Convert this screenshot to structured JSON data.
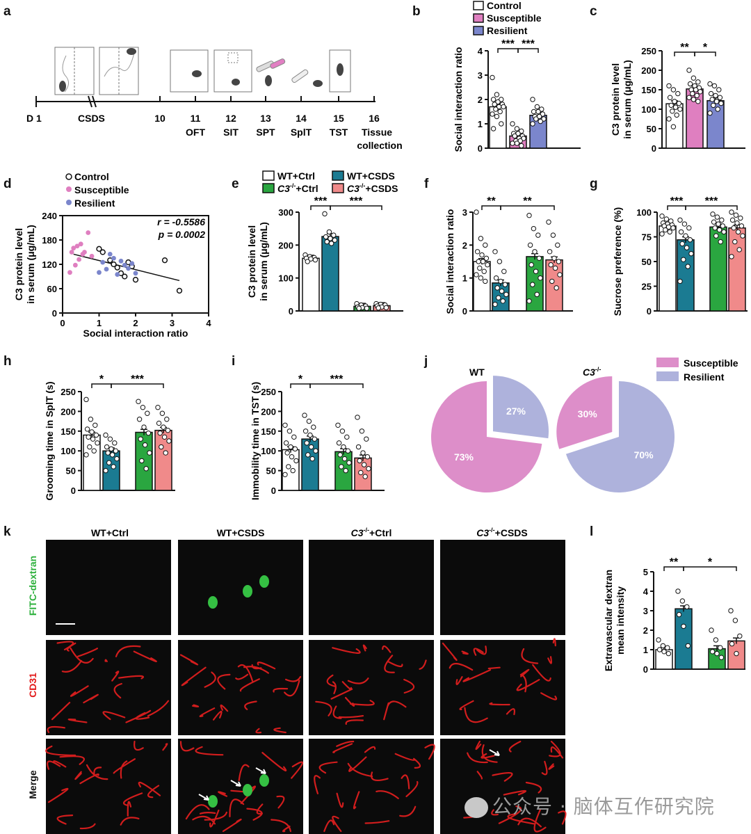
{
  "colors": {
    "control": "#ffffff",
    "susceptible": "#df7fc0",
    "resilient": "#7b86cc",
    "wt_ctrl": "#ffffff",
    "wt_csds": "#1b7b92",
    "c3_ctrl": "#2aa640",
    "c3_csds": "#f08a8a",
    "pie_susceptible": "#dd8ec9",
    "pie_resilient": "#aeb2dc",
    "fitc": "#35c043",
    "cd31": "#e81f1f"
  },
  "panel_letters": [
    "a",
    "b",
    "c",
    "d",
    "e",
    "f",
    "g",
    "h",
    "i",
    "j",
    "k",
    "l"
  ],
  "panel_a": {
    "day_start": "D 1",
    "csds_label": "CSDS",
    "days": [
      "10",
      "11",
      "12",
      "13",
      "14",
      "15",
      "16"
    ],
    "tests": [
      "OFT",
      "SIT",
      "SPT",
      "SplT",
      "TST",
      "Tissue",
      "collection"
    ]
  },
  "legend_b": [
    "Control",
    "Susceptible",
    "Resilient"
  ],
  "legend_e": [
    "WT+Ctrl",
    "WT+CSDS",
    "C3",
    "+Ctrl",
    "C3",
    "+CSDS"
  ],
  "legend_e_sup": "-/-",
  "panel_k": {
    "columns": [
      "WT+Ctrl",
      "WT+CSDS",
      "C3",
      "+Ctrl",
      "C3",
      "+CSDS"
    ],
    "rows": [
      "FITC-dextran",
      "CD31",
      "Merge"
    ]
  },
  "chart_data": [
    {
      "panel": "b",
      "type": "bar",
      "categories": [
        "Control",
        "Susceptible",
        "Resilient"
      ],
      "values": [
        1.7,
        0.5,
        1.35
      ],
      "points": [
        [
          2.9,
          2.2,
          2.0,
          2.0,
          1.9,
          1.8,
          1.8,
          1.7,
          1.7,
          1.6,
          1.5,
          1.4,
          1.3,
          1.0,
          0.8
        ],
        [
          1.0,
          0.8,
          0.7,
          0.6,
          0.6,
          0.5,
          0.5,
          0.4,
          0.4,
          0.3,
          0.3,
          0.2,
          0.2,
          0.1
        ],
        [
          2.0,
          1.7,
          1.6,
          1.5,
          1.5,
          1.4,
          1.3,
          1.3,
          1.2,
          1.2,
          1.1,
          1.0
        ]
      ],
      "ylabel": "Social interaction ratio",
      "ylim": [
        0,
        4
      ],
      "yticks": [
        "0",
        "1",
        "2",
        "3",
        "4"
      ],
      "sig": [
        "***",
        "***"
      ]
    },
    {
      "panel": "c",
      "type": "bar",
      "categories": [
        "Control",
        "Susceptible",
        "Resilient"
      ],
      "values": [
        114,
        152,
        122
      ],
      "points": [
        [
          160,
          150,
          140,
          130,
          120,
          115,
          110,
          105,
          100,
          95,
          85,
          75,
          55
        ],
        [
          200,
          180,
          170,
          165,
          160,
          155,
          150,
          150,
          145,
          140,
          135,
          130,
          125,
          120
        ],
        [
          165,
          160,
          150,
          140,
          135,
          130,
          125,
          120,
          115,
          110,
          100,
          90
        ]
      ],
      "ylabel": "C3 protein level in serum (μg/mL)",
      "ylim": [
        0,
        250
      ],
      "yticks": [
        "0",
        "50",
        "100",
        "150",
        "200",
        "250"
      ],
      "sig": [
        "**",
        "*"
      ]
    },
    {
      "panel": "d",
      "type": "scatter",
      "xlabel": "Social interaction ratio",
      "ylabel": "C3 protein level in serum (μg/mL)",
      "xlim": [
        0,
        4
      ],
      "ylim": [
        0,
        240
      ],
      "xticks": [
        "0",
        "1",
        "2",
        "3",
        "4"
      ],
      "yticks": [
        "0",
        "60",
        "120",
        "180",
        "240"
      ],
      "r_label": "r = -0.5586",
      "p_label": "p = 0.0002",
      "series": [
        {
          "name": "Control",
          "x": [
            1.0,
            1.1,
            1.3,
            1.4,
            1.5,
            1.6,
            1.7,
            1.8,
            1.9,
            2.0,
            2.8,
            3.2
          ],
          "y": [
            158,
            150,
            130,
            120,
            112,
            98,
            90,
            125,
            115,
            82,
            130,
            55
          ]
        },
        {
          "name": "Susceptible",
          "x": [
            0.2,
            0.25,
            0.3,
            0.35,
            0.4,
            0.45,
            0.5,
            0.55,
            0.6,
            0.7,
            0.8
          ],
          "y": [
            100,
            150,
            160,
            118,
            165,
            132,
            170,
            145,
            150,
            198,
            140
          ]
        },
        {
          "name": "Resilient",
          "x": [
            1.0,
            1.1,
            1.2,
            1.3,
            1.4,
            1.5,
            1.6,
            1.7,
            1.8,
            1.9,
            2.0
          ],
          "y": [
            100,
            125,
            108,
            145,
            135,
            95,
            128,
            118,
            110,
            122,
            98
          ]
        }
      ],
      "fit": {
        "x": [
          0.3,
          3.2
        ],
        "y": [
          145,
          80
        ]
      }
    },
    {
      "panel": "e",
      "type": "bar",
      "categories": [
        "WT+Ctrl",
        "WT+CSDS",
        "C3-/-+Ctrl",
        "C3-/-+CSDS"
      ],
      "values": [
        160,
        226,
        14,
        16
      ],
      "points": [
        [
          170,
          165,
          162,
          160,
          158,
          155,
          150
        ],
        [
          295,
          240,
          230,
          225,
          220,
          215,
          210,
          205
        ],
        [
          22,
          18,
          15,
          12,
          10,
          8,
          8
        ],
        [
          22,
          20,
          18,
          15,
          12,
          10,
          9
        ]
      ],
      "ylabel": "C3 protein level in serum (μg/mL)",
      "ylim": [
        0,
        300
      ],
      "yticks": [
        "0",
        "100",
        "200",
        "300"
      ],
      "sig": [
        "***",
        "***"
      ]
    },
    {
      "panel": "f",
      "type": "bar",
      "categories": [
        "WT+Ctrl",
        "WT+CSDS",
        "C3-/-+Ctrl",
        "C3-/-+CSDS"
      ],
      "values": [
        1.5,
        0.85,
        1.65,
        1.55
      ],
      "points": [
        [
          3.0,
          2.2,
          2.0,
          1.8,
          1.7,
          1.6,
          1.5,
          1.5,
          1.4,
          1.3,
          1.2,
          1.1,
          1.0,
          0.9
        ],
        [
          1.8,
          1.5,
          1.2,
          1.0,
          0.9,
          0.8,
          0.7,
          0.6,
          0.5,
          0.4,
          0.3,
          0.2
        ],
        [
          2.9,
          2.5,
          2.3,
          2.0,
          1.8,
          1.6,
          1.4,
          1.2,
          1.0,
          0.8,
          0.5,
          0.3
        ],
        [
          2.7,
          2.3,
          2.0,
          1.8,
          1.6,
          1.5,
          1.4,
          1.3,
          1.1,
          0.9,
          0.7
        ]
      ],
      "ylabel": "Social interaction ratio",
      "ylim": [
        0,
        3
      ],
      "yticks": [
        "0",
        "1",
        "2",
        "3"
      ],
      "sig": [
        "**",
        "**"
      ]
    },
    {
      "panel": "g",
      "type": "bar",
      "categories": [
        "WT+Ctrl",
        "WT+CSDS",
        "C3-/-+Ctrl",
        "C3-/-+CSDS"
      ],
      "values": [
        86,
        72,
        85,
        84
      ],
      "points": [
        [
          96,
          93,
          91,
          89,
          88,
          87,
          86,
          85,
          84,
          82,
          80,
          78
        ],
        [
          92,
          88,
          84,
          80,
          76,
          72,
          68,
          64,
          58,
          52,
          45,
          30
        ],
        [
          98,
          95,
          92,
          90,
          88,
          86,
          84,
          82,
          80,
          76,
          70
        ],
        [
          100,
          97,
          94,
          92,
          89,
          86,
          84,
          80,
          76,
          70,
          62,
          55
        ]
      ],
      "ylabel": "Sucrose preference (%)",
      "ylim": [
        0,
        100
      ],
      "yticks": [
        "0",
        "25",
        "50",
        "75",
        "100"
      ],
      "sig": [
        "***",
        "***"
      ]
    },
    {
      "panel": "h",
      "type": "bar",
      "categories": [
        "WT+Ctrl",
        "WT+CSDS",
        "C3-/-+Ctrl",
        "C3-/-+CSDS"
      ],
      "values": [
        140,
        100,
        147,
        152
      ],
      "points": [
        [
          230,
          180,
          165,
          155,
          148,
          140,
          135,
          130,
          120,
          110,
          100,
          90
        ],
        [
          140,
          130,
          120,
          110,
          105,
          100,
          95,
          90,
          80,
          70,
          60,
          50
        ],
        [
          225,
          210,
          195,
          180,
          160,
          145,
          130,
          115,
          95,
          75,
          55
        ],
        [
          210,
          195,
          180,
          170,
          160,
          152,
          145,
          135,
          125,
          110,
          95
        ]
      ],
      "ylabel": "Grooming time in SplT (s)",
      "ylim": [
        0,
        250
      ],
      "yticks": [
        "0",
        "50",
        "100",
        "150",
        "200",
        "250"
      ],
      "sig": [
        "*",
        "***"
      ]
    },
    {
      "panel": "i",
      "type": "bar",
      "categories": [
        "WT+Ctrl",
        "WT+CSDS",
        "C3-/-+Ctrl",
        "C3-/-+CSDS"
      ],
      "values": [
        103,
        130,
        98,
        82
      ],
      "points": [
        [
          165,
          150,
          135,
          120,
          110,
          105,
          95,
          85,
          75,
          60,
          50,
          40
        ],
        [
          190,
          175,
          160,
          150,
          140,
          130,
          120,
          110,
          100,
          90,
          80
        ],
        [
          165,
          150,
          135,
          120,
          110,
          100,
          90,
          80,
          70,
          60,
          50
        ],
        [
          185,
          150,
          130,
          110,
          95,
          85,
          75,
          65,
          55,
          45,
          35
        ]
      ],
      "ylabel": "Immobility time in TST (s)",
      "ylim": [
        0,
        250
      ],
      "yticks": [
        "0",
        "50",
        "100",
        "150",
        "200",
        "250"
      ],
      "sig": [
        "*",
        "***"
      ]
    },
    {
      "panel": "j",
      "type": "pie",
      "pies": [
        {
          "name": "WT",
          "slices": [
            {
              "label": "Susceptible",
              "value": 73,
              "text": "73%"
            },
            {
              "label": "Resilient",
              "value": 27,
              "text": "27%"
            }
          ]
        },
        {
          "name": "C3",
          "slices": [
            {
              "label": "Susceptible",
              "value": 30,
              "text": "30%"
            },
            {
              "label": "Resilient",
              "value": 70,
              "text": "70%"
            }
          ]
        }
      ],
      "legend": [
        "Susceptible",
        "Resilient"
      ]
    },
    {
      "panel": "l",
      "type": "bar",
      "categories": [
        "WT+Ctrl",
        "WT+CSDS",
        "C3-/-+Ctrl",
        "C3-/-+CSDS"
      ],
      "values": [
        1.0,
        3.1,
        1.05,
        1.45
      ],
      "points": [
        [
          1.5,
          1.2,
          1.1,
          1.0,
          0.9,
          0.8
        ],
        [
          4.0,
          3.5,
          3.2,
          2.8,
          2.2,
          1.2
        ],
        [
          2.0,
          1.5,
          1.1,
          0.9,
          0.8,
          0.6
        ],
        [
          3.0,
          2.5,
          1.7,
          1.3,
          0.8
        ]
      ],
      "ylabel": "Extravascular dextran mean intensity",
      "ylim": [
        0,
        5
      ],
      "yticks": [
        "0",
        "1",
        "2",
        "3",
        "4",
        "5"
      ],
      "sig": [
        "**",
        "*"
      ]
    }
  ],
  "watermark": "公众号 · 脑体互作研究院"
}
